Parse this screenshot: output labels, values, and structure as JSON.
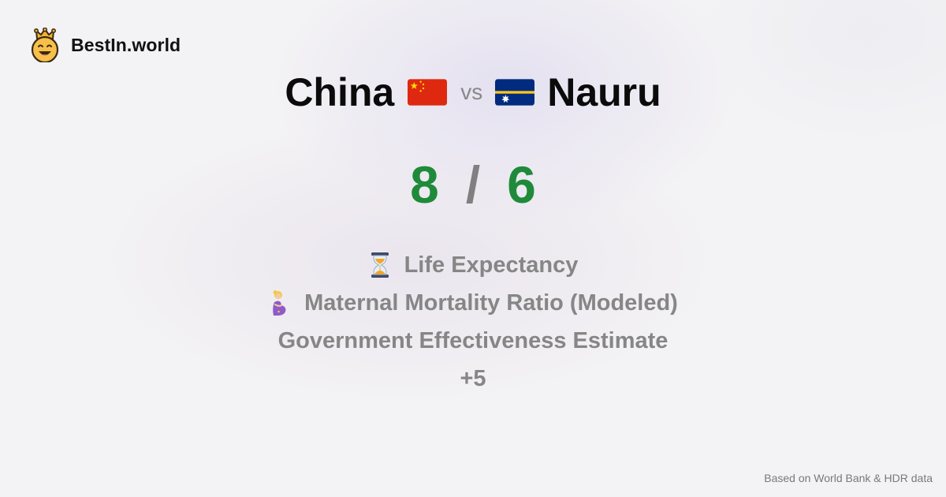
{
  "brand": {
    "name": "BestIn.world",
    "logo_icon": "smiling-crown-face-icon"
  },
  "comparison": {
    "left_country": "China",
    "vs_label": "vs",
    "right_country": "Nauru",
    "left_flag_icon": "china-flag-icon",
    "right_flag_icon": "nauru-flag-icon"
  },
  "score": {
    "left": "8",
    "separator": "/",
    "right": "6",
    "color": "#1f8a3a"
  },
  "metrics": [
    {
      "label": "Life Expectancy",
      "icon": "hourglass-icon"
    },
    {
      "label": "Maternal Mortality Ratio (Modeled)",
      "icon": "pregnant-woman-icon"
    },
    {
      "label": "Government Effectiveness Estimate",
      "icon": ""
    }
  ],
  "more_label": "+5",
  "footer": {
    "source": "Based on World Bank & HDR data"
  }
}
